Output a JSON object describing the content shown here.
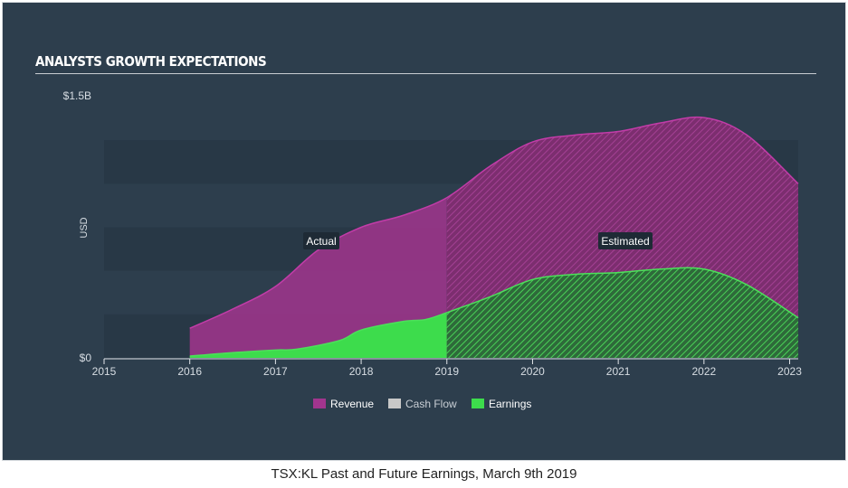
{
  "header": {
    "title": "ANALYSTS GROWTH EXPECTATIONS"
  },
  "caption": "TSX:KL Past and Future Earnings, March 9th 2019",
  "colors": {
    "panel_bg": "#2d3e4d",
    "band_dark": "#283846",
    "revenue": "#a2358e",
    "revenue_line": "#c23ca8",
    "earnings": "#3ddc4c",
    "earnings_line": "#4ce05a",
    "cash_flow": "#c8c8c8",
    "axis_text": "#d7dde3",
    "label_bg": "#1e2a35"
  },
  "chart_data": {
    "type": "area",
    "ylabel": "USD",
    "y_tick_labels": [
      "$0",
      "$1.5B"
    ],
    "ylim": [
      0,
      1500000000
    ],
    "xlim": [
      2015,
      2023.1
    ],
    "x_ticks": [
      2015,
      2016,
      2017,
      2018,
      2019,
      2020,
      2021,
      2022,
      2023
    ],
    "x_tick_labels": [
      "2015",
      "2016",
      "2017",
      "2018",
      "2019",
      "2020",
      "2021",
      "2022",
      "2023"
    ],
    "actual_end": 2019,
    "annotations": {
      "actual": "Actual",
      "estimated": "Estimated"
    },
    "legend": {
      "placement": "bottom-center",
      "items": [
        "Revenue",
        "Cash Flow",
        "Earnings"
      ]
    },
    "series": [
      {
        "name": "Revenue",
        "points": [
          [
            2016,
            170000000.0
          ],
          [
            2016.5,
            280000000.0
          ],
          [
            2017,
            410000000.0
          ],
          [
            2017.5,
            620000000.0
          ],
          [
            2018,
            750000000.0
          ],
          [
            2018.5,
            820000000.0
          ],
          [
            2019,
            920000000.0
          ],
          [
            2019.5,
            1100000000.0
          ],
          [
            2020,
            1240000000.0
          ],
          [
            2020.5,
            1280000000.0
          ],
          [
            2021,
            1300000000.0
          ],
          [
            2021.5,
            1350000000.0
          ],
          [
            2022,
            1380000000.0
          ],
          [
            2022.5,
            1280000000.0
          ],
          [
            2023.1,
            1000000000.0
          ]
        ]
      },
      {
        "name": "Cash Flow",
        "points": []
      },
      {
        "name": "Earnings",
        "points": [
          [
            2016,
            10000000.0
          ],
          [
            2016.5,
            30000000.0
          ],
          [
            2017,
            45000000.0
          ],
          [
            2017.25,
            50000000.0
          ],
          [
            2017.75,
            100000000.0
          ],
          [
            2018,
            160000000.0
          ],
          [
            2018.5,
            210000000.0
          ],
          [
            2018.75,
            220000000.0
          ],
          [
            2019,
            260000000.0
          ],
          [
            2019.5,
            350000000.0
          ],
          [
            2020,
            450000000.0
          ],
          [
            2020.5,
            480000000.0
          ],
          [
            2021,
            490000000.0
          ],
          [
            2021.5,
            510000000.0
          ],
          [
            2022,
            510000000.0
          ],
          [
            2022.5,
            420000000.0
          ],
          [
            2023.1,
            230000000.0
          ]
        ]
      }
    ]
  }
}
